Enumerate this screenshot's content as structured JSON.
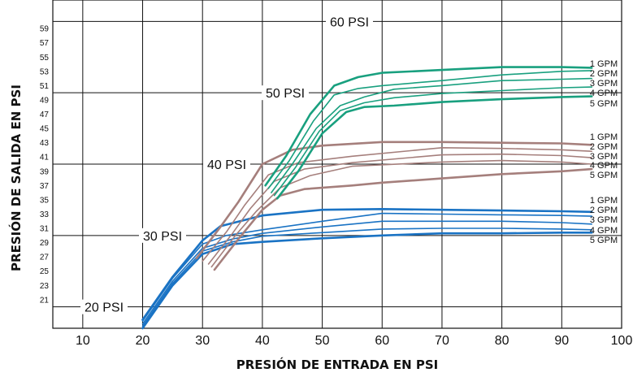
{
  "chart_data": {
    "type": "line",
    "xlabel": "PRESIÓN DE ENTRADA EN PSI",
    "ylabel": "PRESIÓN DE SALIDA EN PSI",
    "xlim": [
      5,
      100
    ],
    "ylim": [
      17,
      63
    ],
    "x_ticks": [
      10,
      20,
      30,
      40,
      50,
      60,
      70,
      80,
      90,
      100
    ],
    "y_ticks": [
      21,
      23,
      25,
      27,
      29,
      31,
      33,
      35,
      37,
      39,
      41,
      43,
      45,
      47,
      49,
      51,
      53,
      55,
      57,
      59
    ],
    "grid": true,
    "setpoint_lines": [
      {
        "label": "20 PSI",
        "y": 20
      },
      {
        "label": "30 PSI",
        "y": 30
      },
      {
        "label": "40 PSI",
        "y": 40
      },
      {
        "label": "50 PSI",
        "y": 50
      },
      {
        "label": "60 PSI",
        "y": 60
      }
    ],
    "groups": [
      {
        "setpoint": "30 PSI",
        "color": "#1a73c4",
        "series": [
          {
            "name": "1 GPM",
            "points": [
              [
                20,
                18.2
              ],
              [
                25,
                24.2
              ],
              [
                30,
                29.3
              ],
              [
                33,
                31.3
              ],
              [
                40,
                32.8
              ],
              [
                50,
                33.6
              ],
              [
                60,
                33.7
              ],
              [
                70,
                33.6
              ],
              [
                80,
                33.5
              ],
              [
                90,
                33.4
              ],
              [
                95,
                33.3
              ]
            ]
          },
          {
            "name": "2 GPM",
            "points": [
              [
                20,
                18.0
              ],
              [
                25,
                24.0
              ],
              [
                30,
                28.8
              ],
              [
                34,
                30.0
              ],
              [
                40,
                30.8
              ],
              [
                50,
                32.0
              ],
              [
                60,
                33.1
              ],
              [
                70,
                33.0
              ],
              [
                80,
                32.9
              ],
              [
                90,
                32.8
              ],
              [
                95,
                32.7
              ]
            ]
          },
          {
            "name": "3 GPM",
            "points": [
              [
                20,
                17.6
              ],
              [
                25,
                23.6
              ],
              [
                30,
                28.2
              ],
              [
                35,
                29.5
              ],
              [
                40,
                30.3
              ],
              [
                50,
                31.2
              ],
              [
                60,
                32.0
              ],
              [
                70,
                32.0
              ],
              [
                80,
                32.0
              ],
              [
                90,
                31.8
              ],
              [
                95,
                31.6
              ]
            ]
          },
          {
            "name": "4 GPM",
            "points": [
              [
                20,
                17.3
              ],
              [
                25,
                23.3
              ],
              [
                30,
                27.8
              ],
              [
                35,
                29.1
              ],
              [
                40,
                29.9
              ],
              [
                50,
                30.4
              ],
              [
                60,
                30.9
              ],
              [
                70,
                31.0
              ],
              [
                80,
                31.0
              ],
              [
                90,
                30.9
              ],
              [
                95,
                30.8
              ]
            ]
          },
          {
            "name": "5 GPM",
            "points": [
              [
                20,
                17.0
              ],
              [
                25,
                23.0
              ],
              [
                30,
                27.4
              ],
              [
                35,
                28.8
              ],
              [
                40,
                29.1
              ],
              [
                50,
                29.6
              ],
              [
                60,
                30.0
              ],
              [
                70,
                30.3
              ],
              [
                80,
                30.3
              ],
              [
                90,
                30.4
              ],
              [
                95,
                30.4
              ]
            ]
          }
        ]
      },
      {
        "setpoint": "40 PSI",
        "color": "#a57f7c",
        "series": [
          {
            "name": "1 GPM",
            "points": [
              [
                29,
                26.8
              ],
              [
                33,
                31.2
              ],
              [
                36,
                34.7
              ],
              [
                40,
                40.0
              ],
              [
                45,
                42.0
              ],
              [
                50,
                42.6
              ],
              [
                60,
                43.1
              ],
              [
                70,
                43.1
              ],
              [
                80,
                43.0
              ],
              [
                90,
                42.9
              ],
              [
                95,
                42.7
              ]
            ]
          },
          {
            "name": "2 GPM",
            "points": [
              [
                30,
                26.4
              ],
              [
                34,
                30.5
              ],
              [
                37,
                34.2
              ],
              [
                41,
                38.5
              ],
              [
                46,
                40.2
              ],
              [
                55,
                41.1
              ],
              [
                70,
                42.3
              ],
              [
                80,
                42.2
              ],
              [
                90,
                42.0
              ],
              [
                95,
                41.8
              ]
            ]
          },
          {
            "name": "3 GPM",
            "points": [
              [
                31,
                26.0
              ],
              [
                35,
                30.3
              ],
              [
                38,
                33.8
              ],
              [
                42,
                37.6
              ],
              [
                47,
                39.3
              ],
              [
                55,
                40.2
              ],
              [
                70,
                41.3
              ],
              [
                80,
                41.4
              ],
              [
                90,
                41.2
              ],
              [
                95,
                40.9
              ]
            ]
          },
          {
            "name": "4 GPM",
            "points": [
              [
                31.5,
                25.6
              ],
              [
                35.5,
                30.0
              ],
              [
                39,
                33.4
              ],
              [
                43,
                36.7
              ],
              [
                48,
                38.4
              ],
              [
                55,
                39.7
              ],
              [
                70,
                40.3
              ],
              [
                80,
                40.5
              ],
              [
                90,
                40.3
              ],
              [
                95,
                40.0
              ]
            ]
          },
          {
            "name": "5 GPM",
            "points": [
              [
                32,
                25.2
              ],
              [
                36,
                29.5
              ],
              [
                40,
                33.6
              ],
              [
                43,
                35.6
              ],
              [
                47,
                36.5
              ],
              [
                55,
                37.0
              ],
              [
                60,
                37.4
              ],
              [
                70,
                38.0
              ],
              [
                80,
                38.6
              ],
              [
                90,
                39.0
              ],
              [
                95,
                39.3
              ]
            ]
          }
        ]
      },
      {
        "setpoint": "50 PSI",
        "color": "#19a07f",
        "series": [
          {
            "name": "1 GPM",
            "points": [
              [
                40.5,
                37.0
              ],
              [
                44,
                41.2
              ],
              [
                48,
                47.0
              ],
              [
                52,
                51.0
              ],
              [
                56,
                52.2
              ],
              [
                60,
                52.8
              ],
              [
                70,
                53.2
              ],
              [
                80,
                53.6
              ],
              [
                90,
                53.6
              ],
              [
                95,
                53.5
              ]
            ]
          },
          {
            "name": "2 GPM",
            "points": [
              [
                41,
                36.6
              ],
              [
                44.5,
                40.5
              ],
              [
                48.5,
                46.0
              ],
              [
                52,
                49.7
              ],
              [
                56,
                50.6
              ],
              [
                60,
                51.0
              ],
              [
                70,
                51.7
              ],
              [
                80,
                52.5
              ],
              [
                90,
                53.0
              ],
              [
                95,
                53.1
              ]
            ]
          },
          {
            "name": "3 GPM",
            "points": [
              [
                41.5,
                36.0
              ],
              [
                45,
                40.0
              ],
              [
                49,
                45.0
              ],
              [
                53,
                48.2
              ],
              [
                57,
                49.4
              ],
              [
                62,
                50.5
              ],
              [
                70,
                51.0
              ],
              [
                80,
                51.7
              ],
              [
                90,
                51.9
              ],
              [
                95,
                52.0
              ]
            ]
          },
          {
            "name": "4 GPM",
            "points": [
              [
                42,
                35.6
              ],
              [
                45.5,
                39.5
              ],
              [
                49.5,
                44.6
              ],
              [
                53,
                47.5
              ],
              [
                57,
                48.6
              ],
              [
                62,
                49.3
              ],
              [
                70,
                49.9
              ],
              [
                80,
                50.3
              ],
              [
                90,
                50.7
              ],
              [
                95,
                50.8
              ]
            ]
          },
          {
            "name": "5 GPM",
            "points": [
              [
                42.5,
                35.2
              ],
              [
                46,
                39.0
              ],
              [
                50,
                44.3
              ],
              [
                54,
                47.3
              ],
              [
                57,
                48.0
              ],
              [
                62,
                48.2
              ],
              [
                70,
                48.7
              ],
              [
                80,
                49.1
              ],
              [
                90,
                49.4
              ],
              [
                95,
                49.5
              ]
            ]
          }
        ]
      }
    ]
  }
}
